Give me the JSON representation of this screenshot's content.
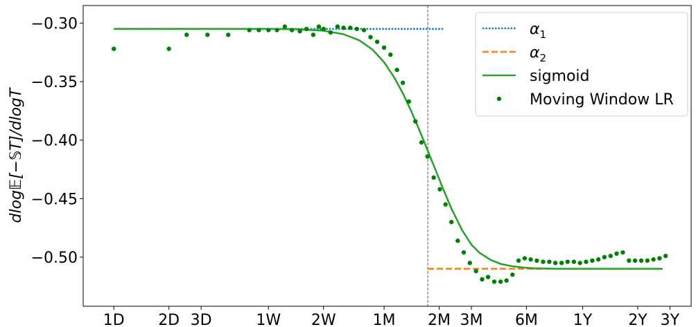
{
  "chart_data": {
    "type": "line",
    "title": "",
    "xlabel": "",
    "ylabel": "dlog𝔼[−𝕊T]/dlogT",
    "x_scale": "log",
    "x_unit": "days",
    "xlim": [
      0.68,
      1430
    ],
    "ylim": [
      -0.542,
      -0.285
    ],
    "x_ticks": [
      {
        "label": "1D",
        "value": 1
      },
      {
        "label": "2D",
        "value": 2
      },
      {
        "label": "3D",
        "value": 3
      },
      {
        "label": "1W",
        "value": 7
      },
      {
        "label": "2W",
        "value": 14
      },
      {
        "label": "1M",
        "value": 30
      },
      {
        "label": "2M",
        "value": 60
      },
      {
        "label": "3M",
        "value": 90
      },
      {
        "label": "6M",
        "value": 180
      },
      {
        "label": "1Y",
        "value": 365
      },
      {
        "label": "2Y",
        "value": 730
      },
      {
        "label": "3Y",
        "value": 1095
      }
    ],
    "y_ticks": [
      {
        "label": "−0.30",
        "value": -0.3
      },
      {
        "label": "−0.35",
        "value": -0.35
      },
      {
        "label": "−0.40",
        "value": -0.4
      },
      {
        "label": "−0.45",
        "value": -0.45
      },
      {
        "label": "−0.50",
        "value": -0.5
      }
    ],
    "vline": {
      "x": 52,
      "color": "#808080"
    },
    "legend_position": "top-right",
    "series": [
      {
        "name": "α1",
        "label_main": "α",
        "label_sub": "1",
        "style": "dotted",
        "color": "#1f77b4",
        "x": [
          1,
          63
        ],
        "y": [
          -0.305,
          -0.305
        ]
      },
      {
        "name": "α2",
        "label_main": "α",
        "label_sub": "2",
        "style": "dashed",
        "color": "#ff7f0e",
        "x": [
          52,
          1000
        ],
        "y": [
          -0.51,
          -0.51
        ]
      },
      {
        "name": "sigmoid",
        "label_main": "sigmoid",
        "style": "solid",
        "color": "#2ca02c",
        "x": [
          1,
          2,
          4,
          7,
          10,
          14,
          18,
          22,
          26,
          30,
          34,
          38,
          42,
          46,
          50,
          54,
          58,
          63,
          70,
          80,
          90,
          100,
          115,
          130,
          150,
          175,
          200,
          250,
          300,
          400,
          500,
          700,
          1000
        ],
        "y": [
          -0.305,
          -0.305,
          -0.305,
          -0.305,
          -0.3053,
          -0.3065,
          -0.3095,
          -0.3148,
          -0.3228,
          -0.3335,
          -0.3462,
          -0.36,
          -0.3745,
          -0.3888,
          -0.4025,
          -0.4155,
          -0.4275,
          -0.4415,
          -0.4585,
          -0.4768,
          -0.4893,
          -0.4965,
          -0.5025,
          -0.5058,
          -0.5078,
          -0.509,
          -0.5096,
          -0.5099,
          -0.51,
          -0.51,
          -0.51,
          -0.51,
          -0.51
        ]
      },
      {
        "name": "Moving Window LR",
        "label_main": "Moving Window LR",
        "style": "markers",
        "color": "#008000",
        "x": [
          1,
          2,
          2.5,
          3.25,
          4.22,
          5.5,
          6.2,
          7,
          7.8,
          8.6,
          9.4,
          10.4,
          11.3,
          12.3,
          13.2,
          14,
          15.3,
          16.7,
          18,
          19.6,
          21.3,
          23.3,
          25.3,
          27.5,
          30,
          32.5,
          35.3,
          38,
          41,
          44.5,
          48,
          51.8,
          56,
          60.5,
          65,
          70,
          75.8,
          81.8,
          88.3,
          95.4,
          103,
          111,
          120,
          130,
          140,
          151,
          163,
          176,
          190,
          205,
          222,
          240,
          259,
          280,
          302,
          327,
          353,
          381,
          412,
          445,
          480,
          519,
          560,
          605,
          654,
          706,
          763,
          824,
          890,
          961,
          1037
        ],
        "y": [
          -0.322,
          -0.322,
          -0.31,
          -0.31,
          -0.31,
          -0.306,
          -0.306,
          -0.306,
          -0.306,
          -0.303,
          -0.306,
          -0.307,
          -0.305,
          -0.31,
          -0.303,
          -0.305,
          -0.308,
          -0.303,
          -0.304,
          -0.304,
          -0.305,
          -0.306,
          -0.312,
          -0.316,
          -0.321,
          -0.327,
          -0.34,
          -0.351,
          -0.367,
          -0.384,
          -0.402,
          -0.414,
          -0.432,
          -0.442,
          -0.455,
          -0.47,
          -0.486,
          -0.496,
          -0.505,
          -0.512,
          -0.519,
          -0.517,
          -0.521,
          -0.521,
          -0.52,
          -0.515,
          -0.503,
          -0.501,
          -0.502,
          -0.503,
          -0.504,
          -0.504,
          -0.505,
          -0.505,
          -0.504,
          -0.504,
          -0.505,
          -0.504,
          -0.503,
          -0.502,
          -0.5,
          -0.499,
          -0.497,
          -0.496,
          -0.503,
          -0.503,
          -0.503,
          -0.503,
          -0.502,
          -0.501,
          -0.499
        ]
      }
    ]
  }
}
